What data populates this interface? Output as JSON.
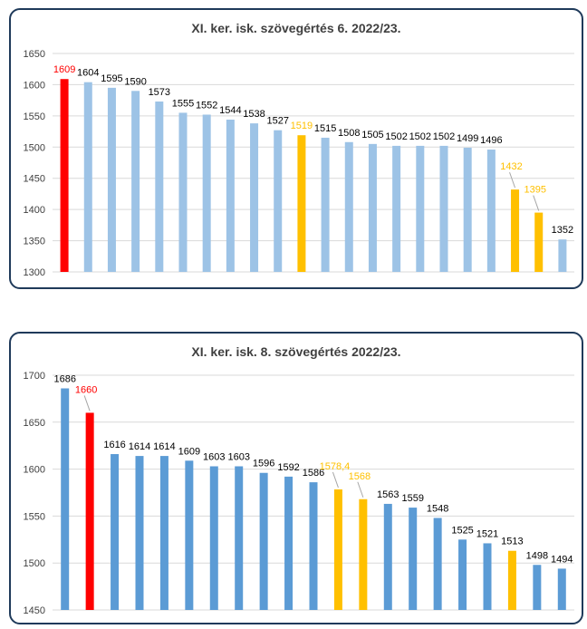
{
  "chart_data": [
    {
      "type": "bar",
      "title": "XI. ker. isk. szövegértés 6. 2022/23.",
      "ylim": [
        1300,
        1650
      ],
      "yticks": [
        1300,
        1350,
        1400,
        1450,
        1500,
        1550,
        1600,
        1650
      ],
      "grid": true,
      "legend": "none",
      "values": [
        1609,
        1604,
        1595,
        1590,
        1573,
        1555,
        1552,
        1544,
        1538,
        1527,
        1519,
        1515,
        1508,
        1505,
        1502,
        1502,
        1502,
        1499,
        1496,
        1432,
        1395,
        1352
      ],
      "value_labels": [
        "1609",
        "1604",
        "1595",
        "1590",
        "1573",
        "1555",
        "1552",
        "1544",
        "1538",
        "1527",
        "1519",
        "1515",
        "1508",
        "1505",
        "1502",
        "1502",
        "1502",
        "1499",
        "1496",
        "1432",
        "1395",
        "1352"
      ],
      "bar_colors": [
        "#ff0000",
        "#9dc3e6",
        "#9dc3e6",
        "#9dc3e6",
        "#9dc3e6",
        "#9dc3e6",
        "#9dc3e6",
        "#9dc3e6",
        "#9dc3e6",
        "#9dc3e6",
        "#ffc000",
        "#9dc3e6",
        "#9dc3e6",
        "#9dc3e6",
        "#9dc3e6",
        "#9dc3e6",
        "#9dc3e6",
        "#9dc3e6",
        "#9dc3e6",
        "#ffc000",
        "#ffc000",
        "#9dc3e6"
      ],
      "label_colors": [
        "#ff0000",
        "#000000",
        "#000000",
        "#000000",
        "#000000",
        "#000000",
        "#000000",
        "#000000",
        "#000000",
        "#000000",
        "#ffc000",
        "#000000",
        "#000000",
        "#000000",
        "#000000",
        "#000000",
        "#000000",
        "#000000",
        "#000000",
        "#ffc000",
        "#ffc000",
        "#000000"
      ]
    },
    {
      "type": "bar",
      "title": "XI. ker. isk. 8. szövegértés 2022/23.",
      "ylim": [
        1450,
        1700
      ],
      "yticks": [
        1450,
        1500,
        1550,
        1600,
        1650,
        1700
      ],
      "grid": true,
      "legend": "none",
      "values": [
        1686,
        1660,
        1616,
        1614,
        1614,
        1609,
        1603,
        1603,
        1596,
        1592,
        1586,
        1578.4,
        1568,
        1563,
        1559,
        1548,
        1525,
        1521,
        1513,
        1498,
        1494
      ],
      "value_labels": [
        "1686",
        "1660",
        "1616",
        "1614",
        "1614",
        "1609",
        "1603",
        "1603",
        "1596",
        "1592",
        "1586",
        "1578,4",
        "1568",
        "1563",
        "1559",
        "1548",
        "1525",
        "1521",
        "1513",
        "1498",
        "1494"
      ],
      "bar_colors": [
        "#5b9bd5",
        "#ff0000",
        "#5b9bd5",
        "#5b9bd5",
        "#5b9bd5",
        "#5b9bd5",
        "#5b9bd5",
        "#5b9bd5",
        "#5b9bd5",
        "#5b9bd5",
        "#5b9bd5",
        "#ffc000",
        "#ffc000",
        "#5b9bd5",
        "#5b9bd5",
        "#5b9bd5",
        "#5b9bd5",
        "#5b9bd5",
        "#ffc000",
        "#5b9bd5",
        "#5b9bd5"
      ],
      "label_colors": [
        "#000000",
        "#ff0000",
        "#000000",
        "#000000",
        "#000000",
        "#000000",
        "#000000",
        "#000000",
        "#000000",
        "#000000",
        "#000000",
        "#ffc000",
        "#ffc000",
        "#000000",
        "#000000",
        "#000000",
        "#000000",
        "#000000",
        "#000000",
        "#000000",
        "#000000"
      ]
    }
  ]
}
